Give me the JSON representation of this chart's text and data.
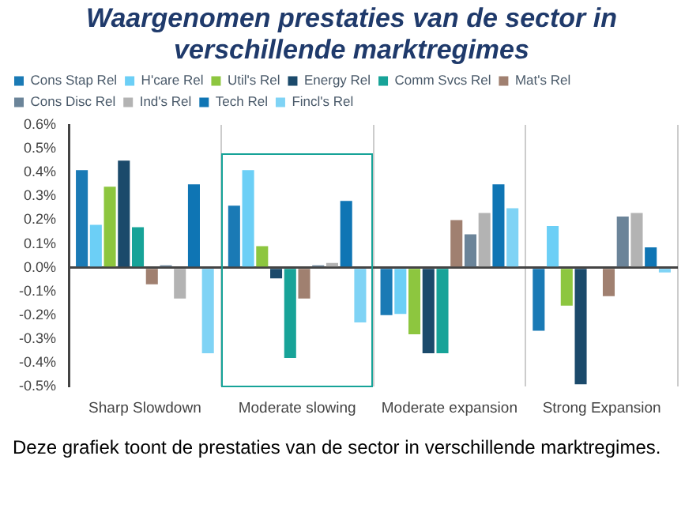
{
  "chart_data": {
    "type": "bar",
    "title": "Waargenomen prestaties van de sector in verschillende marktregimes",
    "categories": [
      "Sharp Slowdown",
      "Moderate slowing",
      "Moderate expansion",
      "Strong Expansion"
    ],
    "series": [
      {
        "name": "Cons Stap Rel",
        "color": "#1a7ab5",
        "values": [
          0.41,
          0.26,
          -0.2,
          -0.265
        ]
      },
      {
        "name": "H'care Rel",
        "color": "#6ccff6",
        "values": [
          0.18,
          0.41,
          -0.195,
          0.175
        ]
      },
      {
        "name": "Util's Rel",
        "color": "#8dc63f",
        "values": [
          0.34,
          0.09,
          -0.28,
          -0.16
        ]
      },
      {
        "name": "Energy Rel",
        "color": "#1b4a6b",
        "values": [
          0.45,
          -0.045,
          -0.36,
          -0.49
        ]
      },
      {
        "name": "Comm Svcs Rel",
        "color": "#17a398",
        "values": [
          0.17,
          -0.38,
          -0.36,
          0
        ]
      },
      {
        "name": "Mat's Rel",
        "color": "#a08070",
        "values": [
          -0.07,
          -0.13,
          0.2,
          -0.12
        ]
      },
      {
        "name": "Cons Disc Rel",
        "color": "#6b8499",
        "values": [
          0.01,
          0.01,
          0.14,
          0.215
        ]
      },
      {
        "name": "Ind's Rel",
        "color": "#b3b3b3",
        "values": [
          -0.13,
          0.02,
          0.23,
          0.23
        ]
      },
      {
        "name": "Tech Rel",
        "color": "#0f75b4",
        "values": [
          0.35,
          0.28,
          0.35,
          0.085
        ]
      },
      {
        "name": "Fincl's Rel",
        "color": "#7fd3f5",
        "values": [
          -0.36,
          -0.23,
          0.25,
          -0.02
        ]
      }
    ],
    "ylim": [
      -0.5,
      0.6
    ],
    "yticks": [
      {
        "value": -0.5,
        "label": "-0.5%"
      },
      {
        "value": -0.4,
        "label": "-0.4%"
      },
      {
        "value": -0.3,
        "label": "-0.3%"
      },
      {
        "value": -0.2,
        "label": "-0.2%"
      },
      {
        "value": -0.1,
        "label": "-0.1%"
      },
      {
        "value": 0,
        "label": "0.0%"
      },
      {
        "value": 0.1,
        "label": "0.1%"
      },
      {
        "value": 0.2,
        "label": "0.2%"
      },
      {
        "value": 0.3,
        "label": "0.3%"
      },
      {
        "value": 0.4,
        "label": "0.4%"
      },
      {
        "value": 0.5,
        "label": "0.5%"
      },
      {
        "value": 0.6,
        "label": "0.6%"
      }
    ],
    "grid": "x",
    "legend": "top",
    "annotations": [
      "Deze grafiek toont de prestaties van de sector in verschillende marktregimes."
    ]
  }
}
